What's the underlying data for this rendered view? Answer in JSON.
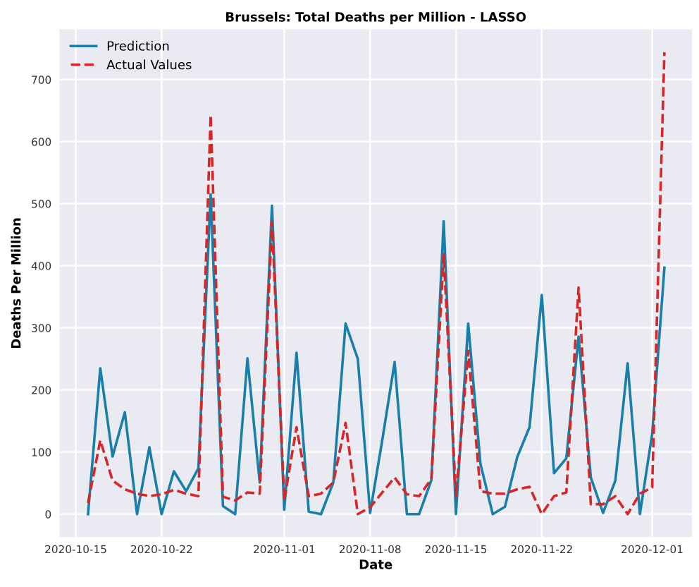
{
  "chart_data": {
    "type": "line",
    "title": "Brussels: Total Deaths per Million - LASSO",
    "xlabel": "Date",
    "ylabel": "Deaths Per Million",
    "x": [
      "2020-10-16",
      "2020-10-17",
      "2020-10-18",
      "2020-10-19",
      "2020-10-20",
      "2020-10-21",
      "2020-10-22",
      "2020-10-23",
      "2020-10-24",
      "2020-10-25",
      "2020-10-26",
      "2020-10-27",
      "2020-10-28",
      "2020-10-29",
      "2020-10-30",
      "2020-10-31",
      "2020-11-01",
      "2020-11-02",
      "2020-11-03",
      "2020-11-04",
      "2020-11-05",
      "2020-11-06",
      "2020-11-07",
      "2020-11-08",
      "2020-11-09",
      "2020-11-10",
      "2020-11-11",
      "2020-11-12",
      "2020-11-13",
      "2020-11-14",
      "2020-11-15",
      "2020-11-16",
      "2020-11-17",
      "2020-11-18",
      "2020-11-19",
      "2020-11-20",
      "2020-11-21",
      "2020-11-22",
      "2020-11-23",
      "2020-11-24",
      "2020-11-25",
      "2020-11-26",
      "2020-11-27",
      "2020-11-28",
      "2020-11-29",
      "2020-11-30",
      "2020-12-01",
      "2020-12-02"
    ],
    "xlim": [
      "2020-10-13T16:00",
      "2020-12-04T06:00"
    ],
    "xticks": [
      {
        "value": "2020-10-15",
        "label": "2020-10-15"
      },
      {
        "value": "2020-10-22",
        "label": "2020-10-22"
      },
      {
        "value": "2020-11-01",
        "label": "2020-11-01"
      },
      {
        "value": "2020-11-08",
        "label": "2020-11-08"
      },
      {
        "value": "2020-11-15",
        "label": "2020-11-15"
      },
      {
        "value": "2020-11-22",
        "label": "2020-11-22"
      },
      {
        "value": "2020-12-01",
        "label": "2020-12-01"
      }
    ],
    "ylim": [
      -37,
      781
    ],
    "yticks": [
      0,
      100,
      200,
      300,
      400,
      500,
      600,
      700
    ],
    "grid": true,
    "legend": "top left",
    "series": [
      {
        "name": "Prediction",
        "color": "#1a7fa8",
        "line_style": "solid",
        "values": [
          0,
          235,
          93,
          164,
          0,
          108,
          0,
          69,
          37,
          74,
          515,
          13,
          0,
          251,
          51,
          497,
          7,
          260,
          4,
          0,
          51,
          307,
          250,
          2,
          120,
          245,
          0,
          0,
          55,
          472,
          0,
          307,
          81,
          0,
          12,
          92,
          140,
          353,
          66,
          90,
          286,
          59,
          2,
          54,
          243,
          0,
          129,
          397
        ]
      },
      {
        "name": "Actual Values",
        "color": "#d62728",
        "line_style": "dashed",
        "values": [
          18,
          119,
          54,
          40,
          33,
          29,
          32,
          39,
          33,
          29,
          643,
          28,
          22,
          35,
          33,
          471,
          22,
          140,
          29,
          33,
          51,
          147,
          0,
          11,
          35,
          59,
          32,
          29,
          57,
          419,
          29,
          263,
          37,
          33,
          33,
          40,
          44,
          0,
          29,
          35,
          365,
          16,
          16,
          29,
          0,
          33,
          43,
          744
        ]
      }
    ]
  }
}
